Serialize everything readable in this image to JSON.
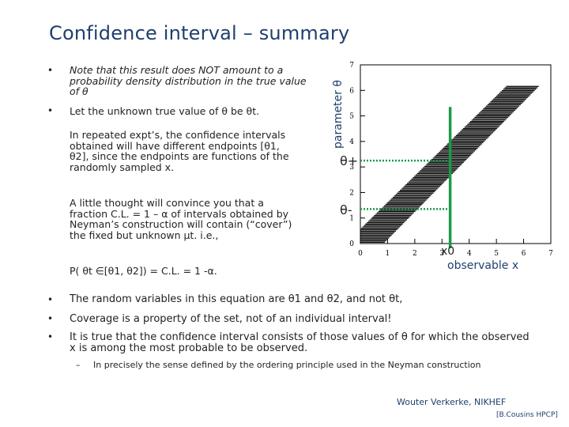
{
  "title": "Confidence interval – summary",
  "bullets": {
    "b1": "Note that this result does NOT amount to a probability density distribution in the true value of θ",
    "b2": "Let the unknown true value of θ be θt.",
    "p1": "In repeated expt’s, the confidence intervals obtained will have different endpoints [θ1, θ2], since the endpoints are functions of the randomly sampled x.",
    "p2": "A little thought will convince you that a fraction C.L. = 1 – α of intervals obtained by Neyman’s construction will contain (“cover”) the fixed but unknown μt. i.e.,",
    "formula": "P( θt ∈[θ1, θ2]) = C.L. = 1 -α.",
    "b3": "The random variables in this equation are θ1 and θ2, and not θt,",
    "b4": "Coverage is a property of the set, not of an individual interval!",
    "b5": "It is true that the confidence interval consists of those values of θ for which the observed x is among the most probable to be observed.",
    "sub": "In precisely the sense defined by the ordering principle used in the Neyman construction"
  },
  "chart": {
    "ylabel": "parameter θ",
    "xlabel": "observable x",
    "theta_plus": "θ+",
    "theta_minus": "θ-",
    "x0": "x0",
    "x_ticks": [
      "0",
      "1",
      "2",
      "3",
      "4",
      "5",
      "6",
      "7"
    ],
    "y_ticks": [
      "0",
      "1",
      "2",
      "3",
      "4",
      "5",
      "6",
      "7"
    ]
  },
  "chart_data": {
    "type": "line",
    "xlim": [
      0,
      7
    ],
    "ylim": [
      0,
      7
    ],
    "observed_x": 3.3,
    "theta_plus": 3.25,
    "theta_minus": 1.35,
    "band_lower_edge": {
      "x": [
        0.9,
        6.6
      ],
      "y": [
        0.05,
        6.2
      ]
    },
    "band_upper_edge": {
      "x": [
        -0.5,
        5.4
      ],
      "y": [
        0.05,
        6.2
      ]
    }
  },
  "footer": {
    "author": "Wouter Verkerke, NIKHEF",
    "ref": "[B.Cousins HPCP]"
  },
  "colors": {
    "title": "#1f3f6e",
    "accent_line": "#1a9a4a",
    "band": "#000000"
  }
}
